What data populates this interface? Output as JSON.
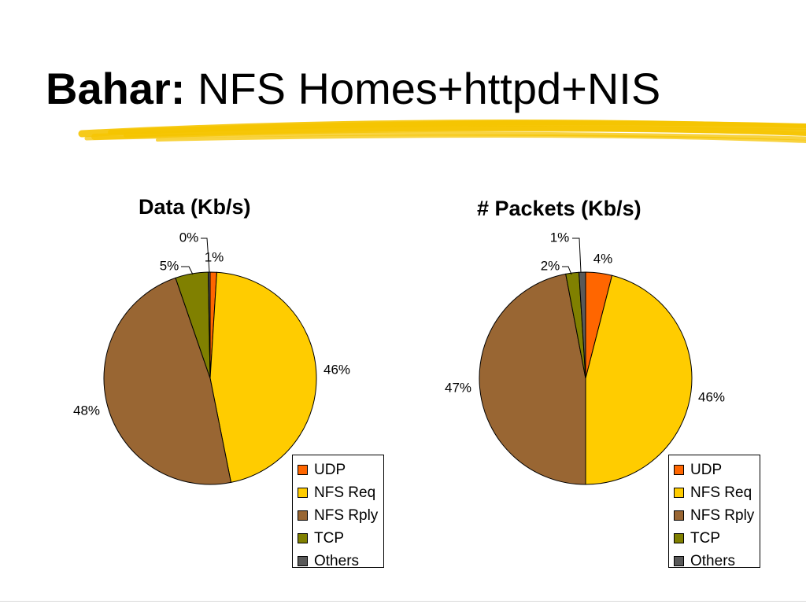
{
  "slide": {
    "title_bold": "Bahar:",
    "title_rest": "NFS Homes+httpd+NIS",
    "highlight_color": "#F5C400"
  },
  "chart_data": [
    {
      "type": "pie",
      "title": "Data (Kb/s)",
      "categories": [
        "UDP",
        "NFS Req",
        "NFS Rply",
        "TCP",
        "Others"
      ],
      "values": [
        1,
        46,
        48,
        5,
        0.3
      ],
      "labels": [
        "1%",
        "46%",
        "48%",
        "5%",
        "0%"
      ],
      "colors": [
        "#FF6600",
        "#FFCC00",
        "#996633",
        "#808000",
        "#595959"
      ],
      "legend": {
        "placement": "bottom-right",
        "items": [
          "UDP",
          "NFS Req",
          "NFS Rply",
          "TCP",
          "Others"
        ]
      }
    },
    {
      "type": "pie",
      "title": "# Packets (Kb/s)",
      "categories": [
        "UDP",
        "NFS Req",
        "NFS Rply",
        "TCP",
        "Others"
      ],
      "values": [
        4,
        46,
        47,
        2,
        1
      ],
      "labels": [
        "4%",
        "46%",
        "47%",
        "2%",
        "1%"
      ],
      "colors": [
        "#FF6600",
        "#FFCC00",
        "#996633",
        "#808000",
        "#595959"
      ],
      "legend": {
        "placement": "bottom-right",
        "items": [
          "UDP",
          "NFS Req",
          "NFS Rply",
          "TCP",
          "Others"
        ]
      }
    }
  ]
}
